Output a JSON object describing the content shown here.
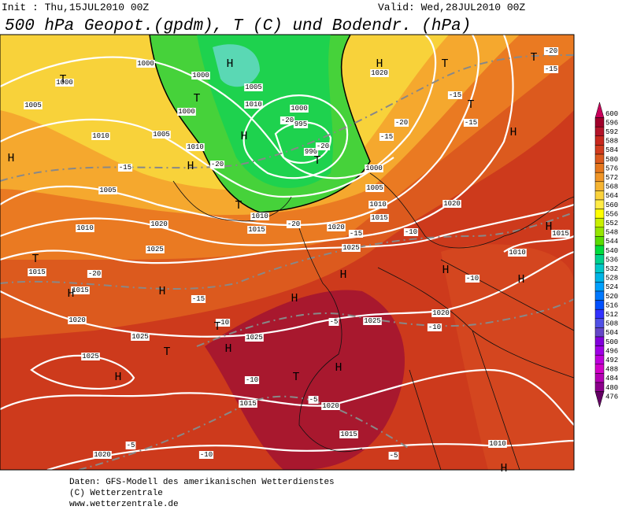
{
  "header": {
    "init": "Init : Thu,15JUL2010 00Z",
    "valid": "Valid: Wed,28JUL2010 00Z",
    "title": "500 hPa Geopot.(gpdm), T (C) und Bodendr. (hPa)"
  },
  "map": {
    "pressure_labels": [
      "1000",
      "1000",
      "1000",
      "1005",
      "1010",
      "1000",
      "1000",
      "995",
      "990",
      "1005",
      "1010",
      "1005",
      "1010",
      "1020",
      "1000",
      "1005",
      "1010",
      "1015",
      "1005",
      "1010",
      "1020",
      "1010",
      "1015",
      "1020",
      "1025",
      "1020",
      "1015",
      "1010",
      "1015",
      "1015",
      "1025",
      "1020",
      "1025",
      "1025",
      "1025",
      "1020",
      "1025",
      "1015",
      "1020",
      "1015",
      "1010",
      "1020"
    ],
    "temperature_labels": [
      "-20",
      "-15",
      "-15",
      "-15",
      "-20",
      "-15",
      "-20",
      "-20",
      "-20",
      "-15",
      "-20",
      "-15",
      "-10",
      "-20",
      "-15",
      "-10",
      "-5",
      "-10",
      "-10",
      "-10",
      "-5",
      "-5",
      "-10",
      "-5"
    ],
    "centers": [
      "H",
      "T",
      "H",
      "T",
      "T",
      "T",
      "T",
      "H",
      "H",
      "T",
      "H",
      "H",
      "T",
      "T",
      "H",
      "H",
      "H",
      "H",
      "H",
      "H",
      "T",
      "H",
      "T",
      "H",
      "T",
      "H",
      "H",
      "H"
    ]
  },
  "colorbar": {
    "levels": [
      600,
      596,
      592,
      588,
      584,
      580,
      576,
      572,
      568,
      564,
      560,
      556,
      552,
      548,
      544,
      540,
      536,
      532,
      528,
      524,
      520,
      516,
      512,
      508,
      504,
      500,
      496,
      492,
      488,
      484,
      480,
      476
    ],
    "colors": [
      "#c8005a",
      "#a0002a",
      "#b4142a",
      "#c8281e",
      "#d23c1e",
      "#dc5a1e",
      "#e6781e",
      "#f09628",
      "#f5b432",
      "#fad23c",
      "#ffeb46",
      "#ffff00",
      "#c8f000",
      "#96e600",
      "#5adc00",
      "#00dc3c",
      "#00d28c",
      "#00c8c8",
      "#00b4e6",
      "#00a0ff",
      "#0078ff",
      "#0050ff",
      "#3232ff",
      "#5050e6",
      "#6446c8",
      "#8200dc",
      "#a000e6",
      "#be00dc",
      "#d200c8",
      "#b400b4",
      "#8c008c",
      "#640064"
    ]
  },
  "footer": [
    "Daten: GFS-Modell des amerikanischen Wetterdienstes",
    "(C) Wetterzentrale",
    "www.wetterzentrale.de"
  ]
}
